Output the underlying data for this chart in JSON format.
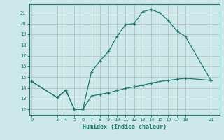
{
  "xlabel": "Humidex (Indice chaleur)",
  "bg_color": "#cce8e8",
  "grid_color": "#b8c8c8",
  "line_color": "#1a7a6e",
  "upper_x": [
    0,
    3,
    4,
    5,
    6,
    7,
    8,
    9,
    10,
    11,
    12,
    13,
    14,
    15,
    16,
    17,
    18,
    21
  ],
  "upper_y": [
    14.6,
    13.1,
    13.8,
    12.0,
    12.0,
    15.5,
    16.5,
    17.4,
    18.8,
    19.9,
    20.0,
    21.1,
    21.3,
    21.0,
    20.3,
    19.3,
    18.8,
    14.7
  ],
  "lower_x": [
    0,
    3,
    4,
    5,
    6,
    7,
    8,
    9,
    10,
    11,
    12,
    13,
    14,
    15,
    16,
    17,
    18,
    21
  ],
  "lower_y": [
    14.6,
    13.1,
    13.8,
    12.0,
    12.0,
    13.25,
    13.4,
    13.55,
    13.75,
    13.95,
    14.1,
    14.25,
    14.45,
    14.6,
    14.7,
    14.8,
    14.9,
    14.7
  ],
  "xticks": [
    0,
    3,
    4,
    5,
    6,
    7,
    8,
    9,
    10,
    11,
    12,
    13,
    14,
    15,
    16,
    17,
    18,
    21
  ],
  "yticks": [
    12,
    13,
    14,
    15,
    16,
    17,
    18,
    19,
    20,
    21
  ],
  "xlim": [
    -0.3,
    22.0
  ],
  "ylim": [
    11.5,
    21.8
  ]
}
